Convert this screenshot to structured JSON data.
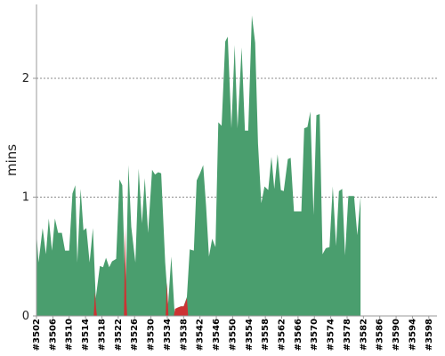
{
  "chart_data": {
    "type": "area",
    "ylabel": "mins",
    "xlabel": "",
    "ylim": [
      0,
      2.6
    ],
    "yticks": [
      0,
      1,
      2
    ],
    "grid": "horizontal dashed at y ticks",
    "x_ticks": [
      "#3502",
      "#3506",
      "#3510",
      "#3514",
      "#3518",
      "#3522",
      "#3526",
      "#3530",
      "#3534",
      "#3538",
      "#3542",
      "#3546",
      "#3550",
      "#3554",
      "#3558",
      "#3562",
      "#3566",
      "#3570",
      "#3574",
      "#3578",
      "#3582",
      "#3586",
      "#3590",
      "#3594",
      "#3598"
    ],
    "x_start": 3502,
    "x_end": 3600,
    "colors": {
      "normal": "#4a9e6e",
      "failed": "#cc3333"
    },
    "series": [
      {
        "values": [
          {
            "x": 3502,
            "y": 0.7
          },
          {
            "x": 3502.5,
            "y": 0.45
          },
          {
            "x": 3503.5,
            "y": 0.74
          },
          {
            "x": 3504.3,
            "y": 0.52
          },
          {
            "x": 3505,
            "y": 0.82
          },
          {
            "x": 3505.8,
            "y": 0.55
          },
          {
            "x": 3506.5,
            "y": 0.82
          },
          {
            "x": 3507.3,
            "y": 0.7
          },
          {
            "x": 3508.2,
            "y": 0.7
          },
          {
            "x": 3509,
            "y": 0.55
          },
          {
            "x": 3510,
            "y": 0.55
          },
          {
            "x": 3510.8,
            "y": 1.03
          },
          {
            "x": 3511.5,
            "y": 1.1
          },
          {
            "x": 3512,
            "y": 0.45
          },
          {
            "x": 3512.8,
            "y": 1.07
          },
          {
            "x": 3513.5,
            "y": 0.72
          },
          {
            "x": 3514.2,
            "y": 0.74
          },
          {
            "x": 3515,
            "y": 0.45
          },
          {
            "x": 3515.8,
            "y": 0.74
          },
          {
            "x": 3516.5,
            "y": 0.15
          },
          {
            "x": 3517.5,
            "y": 0.42
          },
          {
            "x": 3518.3,
            "y": 0.41
          },
          {
            "x": 3519,
            "y": 0.49
          },
          {
            "x": 3519.8,
            "y": 0.41
          },
          {
            "x": 3520.5,
            "y": 0.46
          },
          {
            "x": 3521.5,
            "y": 0.48
          },
          {
            "x": 3522.3,
            "y": 1.15
          },
          {
            "x": 3523,
            "y": 1.1
          },
          {
            "x": 3523.8,
            "y": 0.15
          },
          {
            "x": 3524.5,
            "y": 1.27
          },
          {
            "x": 3525.2,
            "y": 0.75
          },
          {
            "x": 3526.2,
            "y": 0.45
          },
          {
            "x": 3527,
            "y": 1.24
          },
          {
            "x": 3527.8,
            "y": 0.78
          },
          {
            "x": 3528.5,
            "y": 1.16
          },
          {
            "x": 3529.3,
            "y": 0.7
          },
          {
            "x": 3530.3,
            "y": 1.23
          },
          {
            "x": 3531,
            "y": 1.19
          },
          {
            "x": 3531.8,
            "y": 1.21
          },
          {
            "x": 3532.5,
            "y": 1.2
          },
          {
            "x": 3533.5,
            "y": 0.45
          },
          {
            "x": 3534.2,
            "y": 0.1
          },
          {
            "x": 3535,
            "y": 0.5
          },
          {
            "x": 3535.8,
            "y": 0.02
          },
          {
            "x": 3536.5,
            "y": 0.07
          },
          {
            "x": 3537.3,
            "y": 0.08
          },
          {
            "x": 3538,
            "y": 0.08
          },
          {
            "x": 3538.8,
            "y": 0.16
          },
          {
            "x": 3539.5,
            "y": 0.56
          },
          {
            "x": 3540.5,
            "y": 0.55
          },
          {
            "x": 3541.2,
            "y": 1.14
          },
          {
            "x": 3542,
            "y": 1.2
          },
          {
            "x": 3542.8,
            "y": 1.27
          },
          {
            "x": 3543.5,
            "y": 0.92
          },
          {
            "x": 3544.2,
            "y": 0.5
          },
          {
            "x": 3545,
            "y": 0.65
          },
          {
            "x": 3545.8,
            "y": 0.58
          },
          {
            "x": 3546.5,
            "y": 1.63
          },
          {
            "x": 3547.3,
            "y": 1.6
          },
          {
            "x": 3548.2,
            "y": 2.31
          },
          {
            "x": 3548.8,
            "y": 2.35
          },
          {
            "x": 3549.7,
            "y": 1.58
          },
          {
            "x": 3550.5,
            "y": 2.28
          },
          {
            "x": 3551.2,
            "y": 1.58
          },
          {
            "x": 3552.2,
            "y": 2.26
          },
          {
            "x": 3553,
            "y": 1.56
          },
          {
            "x": 3553.8,
            "y": 1.56
          },
          {
            "x": 3554.7,
            "y": 2.53
          },
          {
            "x": 3555.5,
            "y": 2.3
          },
          {
            "x": 3556.2,
            "y": 1.45
          },
          {
            "x": 3557,
            "y": 0.95
          },
          {
            "x": 3557.8,
            "y": 1.09
          },
          {
            "x": 3558.7,
            "y": 1.06
          },
          {
            "x": 3559.5,
            "y": 1.34
          },
          {
            "x": 3560.2,
            "y": 1.07
          },
          {
            "x": 3561,
            "y": 1.36
          },
          {
            "x": 3561.8,
            "y": 1.06
          },
          {
            "x": 3562.5,
            "y": 1.05
          },
          {
            "x": 3563.5,
            "y": 1.32
          },
          {
            "x": 3564.2,
            "y": 1.33
          },
          {
            "x": 3565,
            "y": 0.88
          },
          {
            "x": 3566,
            "y": 0.88
          },
          {
            "x": 3566.8,
            "y": 0.88
          },
          {
            "x": 3567.5,
            "y": 1.58
          },
          {
            "x": 3568.3,
            "y": 1.59
          },
          {
            "x": 3569,
            "y": 1.72
          },
          {
            "x": 3569.8,
            "y": 0.85
          },
          {
            "x": 3570.5,
            "y": 1.69
          },
          {
            "x": 3571.3,
            "y": 1.7
          },
          {
            "x": 3572,
            "y": 0.52
          },
          {
            "x": 3572.8,
            "y": 0.57
          },
          {
            "x": 3573.7,
            "y": 0.58
          },
          {
            "x": 3574.5,
            "y": 1.09
          },
          {
            "x": 3575.3,
            "y": 0.59
          },
          {
            "x": 3576,
            "y": 1.05
          },
          {
            "x": 3576.8,
            "y": 1.07
          },
          {
            "x": 3577.5,
            "y": 0.51
          },
          {
            "x": 3578.3,
            "y": 1.01
          },
          {
            "x": 3579,
            "y": 1.01
          },
          {
            "x": 3579.7,
            "y": 1.01
          },
          {
            "x": 3580.5,
            "y": 0.68
          },
          {
            "x": 3581.3,
            "y": 1.0
          }
        ]
      }
    ],
    "failed_segments": [
      [
        {
          "x": 3516.0,
          "y": 0.0
        },
        {
          "x": 3516.3,
          "y": 0.2
        },
        {
          "x": 3516.6,
          "y": 0.06
        },
        {
          "x": 3516.8,
          "y": 0.0
        }
      ],
      [
        {
          "x": 3523.4,
          "y": 0.0
        },
        {
          "x": 3523.7,
          "y": 0.75
        },
        {
          "x": 3524.0,
          "y": 0.12
        },
        {
          "x": 3524.2,
          "y": 0.0
        }
      ],
      [
        {
          "x": 3533.6,
          "y": 0.0
        },
        {
          "x": 3533.9,
          "y": 0.28
        },
        {
          "x": 3534.3,
          "y": 0.0
        }
      ],
      [
        {
          "x": 3535.6,
          "y": 0.0
        },
        {
          "x": 3535.9,
          "y": 0.06
        },
        {
          "x": 3536.5,
          "y": 0.07
        },
        {
          "x": 3537.3,
          "y": 0.08
        },
        {
          "x": 3538.0,
          "y": 0.08
        },
        {
          "x": 3538.8,
          "y": 0.15
        },
        {
          "x": 3539.1,
          "y": 0.0
        }
      ]
    ]
  }
}
